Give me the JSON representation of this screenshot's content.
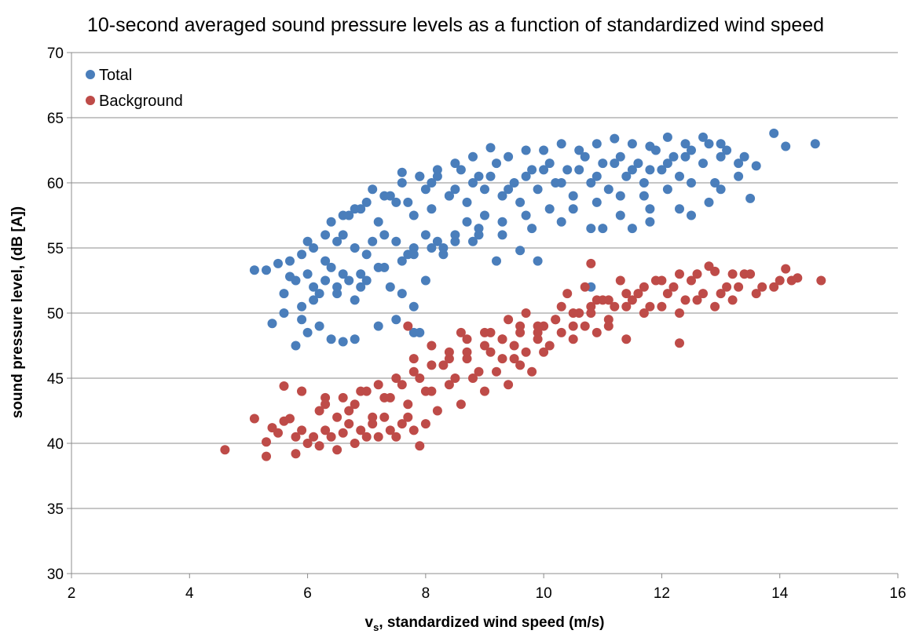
{
  "chart_data": {
    "type": "scatter",
    "title": "10-second averaged sound pressure levels as a function of standardized wind speed",
    "xlabel_main": "v",
    "xlabel_sub": "s",
    "xlabel_rest": ", standardized wind speed (m/s)",
    "ylabel": "sound pressure level, (dB [A])",
    "xlim": [
      2,
      16
    ],
    "ylim": [
      30,
      70
    ],
    "x_ticks": [
      "2",
      "4",
      "6",
      "8",
      "10",
      "12",
      "14",
      "16"
    ],
    "y_ticks": [
      "30",
      "35",
      "40",
      "45",
      "50",
      "55",
      "60",
      "65",
      "70"
    ],
    "grid": "horizontal",
    "legend_placement": "top-left",
    "series": [
      {
        "name": "Total",
        "color": "#4a7ebb",
        "x": [
          5.1,
          5.3,
          5.5,
          5.6,
          5.7,
          5.8,
          5.8,
          5.9,
          5.9,
          6.0,
          6.1,
          6.2,
          6.3,
          6.4,
          6.5,
          6.6,
          6.7,
          6.8,
          6.9,
          7.0,
          7.2,
          7.4,
          7.6,
          7.8,
          7.9,
          8.0,
          5.7,
          5.9,
          6.1,
          6.3,
          6.5,
          6.6,
          6.8,
          7.0,
          7.1,
          7.3,
          7.5,
          7.6,
          7.8,
          8.0,
          8.2,
          8.3,
          8.5,
          8.7,
          8.9,
          9.0,
          6.0,
          6.3,
          6.6,
          6.9,
          7.2,
          7.5,
          7.8,
          8.1,
          8.4,
          8.7,
          9.0,
          9.3,
          9.6,
          9.9,
          10.2,
          10.5,
          10.8,
          11.1,
          11.4,
          11.7,
          12.0,
          12.3,
          6.4,
          6.8,
          7.1,
          7.4,
          7.7,
          8.0,
          8.2,
          8.5,
          8.8,
          9.1,
          9.4,
          9.7,
          10.0,
          10.3,
          10.6,
          10.9,
          11.2,
          11.5,
          11.8,
          12.1,
          12.4,
          12.7,
          13.0,
          13.3,
          13.6,
          6.7,
          7.0,
          7.3,
          7.6,
          7.9,
          8.1,
          8.4,
          8.6,
          8.9,
          9.2,
          9.5,
          9.8,
          10.1,
          10.4,
          10.7,
          11.0,
          11.3,
          11.6,
          11.9,
          12.2,
          12.5,
          12.8,
          13.1,
          13.4,
          7.6,
          7.9,
          8.2,
          8.5,
          8.8,
          9.1,
          9.4,
          9.7,
          10.0,
          10.3,
          10.6,
          10.9,
          11.2,
          11.5,
          11.8,
          12.1,
          12.4,
          12.7,
          13.0,
          13.9,
          14.1,
          14.6,
          7.8,
          8.3,
          8.8,
          9.3,
          9.8,
          10.3,
          10.8,
          11.3,
          11.8,
          12.3,
          12.8,
          6.0,
          6.2,
          6.4,
          6.6,
          6.8,
          7.2,
          7.5,
          7.8,
          9.2,
          9.6,
          9.9,
          10.8,
          11.0,
          11.5,
          11.8,
          12.5,
          13.0,
          13.5,
          5.4,
          5.6,
          6.1,
          6.5,
          6.9,
          7.3,
          7.7,
          8.1,
          8.5,
          8.9,
          9.3,
          9.7,
          10.1,
          10.5,
          10.9,
          11.3,
          11.7,
          12.1,
          12.5,
          12.9,
          13.3
        ],
        "y": [
          53.3,
          53.3,
          53.8,
          51.5,
          52.8,
          52.5,
          47.5,
          49.5,
          50.5,
          53.0,
          52.0,
          51.5,
          52.5,
          53.5,
          52.0,
          53.0,
          52.5,
          51.0,
          53.0,
          52.5,
          53.5,
          52.0,
          51.5,
          50.5,
          48.5,
          52.5,
          54.0,
          54.5,
          55.0,
          54.0,
          55.5,
          56.0,
          55.0,
          54.5,
          55.5,
          56.0,
          55.5,
          54.0,
          55.0,
          56.0,
          55.5,
          54.5,
          56.0,
          57.0,
          56.5,
          57.5,
          55.5,
          56.0,
          57.5,
          58.0,
          57.0,
          58.5,
          57.5,
          58.0,
          59.0,
          58.5,
          59.5,
          59.0,
          58.5,
          59.5,
          60.0,
          59.0,
          60.0,
          59.5,
          60.5,
          60.0,
          61.0,
          60.5,
          57.0,
          58.0,
          59.5,
          59.0,
          58.5,
          59.5,
          60.5,
          59.5,
          60.0,
          60.5,
          59.5,
          60.5,
          61.0,
          60.0,
          61.0,
          60.5,
          61.5,
          61.0,
          61.0,
          61.5,
          62.0,
          61.5,
          62.0,
          61.5,
          61.3,
          57.5,
          58.5,
          59.0,
          60.0,
          60.5,
          60.0,
          59.0,
          61.0,
          60.5,
          61.5,
          60.0,
          61.0,
          61.5,
          61.0,
          62.0,
          61.5,
          62.0,
          61.5,
          62.5,
          62.0,
          62.5,
          63.0,
          62.5,
          62.0,
          60.8,
          60.5,
          61.0,
          61.5,
          62.0,
          62.7,
          62.0,
          62.5,
          62.5,
          63.0,
          62.5,
          63.0,
          63.4,
          63.0,
          62.8,
          63.5,
          63.0,
          63.5,
          63.0,
          63.8,
          62.8,
          63.0,
          54.5,
          55.0,
          55.5,
          56.0,
          56.5,
          57.0,
          56.5,
          57.5,
          57.0,
          58.0,
          58.5,
          48.5,
          49.0,
          48.0,
          47.8,
          48.0,
          49.0,
          49.5,
          48.5,
          54.0,
          54.8,
          54.0,
          52.0,
          56.5,
          56.5,
          58.0,
          57.5,
          59.5,
          58.8,
          49.2,
          50.0,
          51.0,
          51.5,
          52.0,
          53.5,
          54.5,
          55.0,
          55.5,
          56.0,
          57.0,
          57.5,
          58.0,
          58.0,
          58.5,
          59.0,
          59.0,
          59.5,
          60.0,
          60.0,
          60.5
        ]
      },
      {
        "name": "Background",
        "color": "#be4b48",
        "x": [
          4.6,
          5.1,
          5.3,
          5.3,
          5.4,
          5.5,
          5.6,
          5.7,
          5.8,
          5.8,
          5.9,
          6.0,
          6.1,
          6.2,
          6.3,
          6.4,
          6.5,
          6.6,
          6.7,
          6.8,
          6.9,
          7.0,
          7.1,
          7.2,
          7.3,
          7.4,
          7.5,
          7.6,
          7.7,
          7.8,
          7.9,
          8.0,
          5.9,
          6.2,
          6.5,
          6.8,
          7.1,
          7.4,
          7.7,
          8.0,
          8.2,
          8.4,
          8.6,
          8.8,
          9.0,
          9.2,
          9.4,
          9.6,
          9.8,
          10.0,
          6.3,
          6.7,
          7.0,
          7.3,
          7.6,
          7.9,
          8.1,
          8.3,
          8.5,
          8.7,
          8.9,
          9.1,
          9.3,
          9.5,
          9.7,
          9.9,
          10.1,
          10.3,
          10.5,
          10.7,
          10.9,
          11.1,
          7.8,
          8.1,
          8.4,
          8.7,
          9.0,
          9.3,
          9.6,
          9.9,
          10.2,
          10.5,
          10.8,
          11.1,
          11.4,
          11.7,
          12.0,
          12.3,
          12.6,
          12.9,
          13.2,
          9.1,
          9.4,
          9.7,
          10.0,
          10.3,
          10.6,
          10.9,
          11.2,
          11.5,
          11.8,
          12.1,
          12.4,
          12.7,
          13.0,
          13.3,
          13.6,
          13.9,
          14.2,
          10.4,
          10.7,
          11.0,
          11.3,
          11.6,
          11.9,
          12.2,
          12.5,
          12.8,
          13.1,
          13.4,
          13.7,
          14.0,
          14.3,
          14.7,
          5.6,
          5.9,
          6.3,
          6.6,
          6.9,
          7.2,
          7.5,
          7.8,
          8.1,
          8.4,
          8.7,
          9.0,
          9.3,
          9.6,
          9.9,
          10.2,
          10.5,
          10.8,
          11.1,
          11.4,
          11.7,
          12.0,
          12.3,
          12.6,
          12.9,
          13.2,
          13.5,
          14.1,
          7.7,
          8.6,
          9.5,
          10.8,
          11.4,
          12.3
        ],
        "y": [
          39.5,
          41.9,
          39.0,
          40.1,
          41.2,
          40.8,
          41.7,
          41.9,
          39.2,
          40.5,
          41.0,
          40.0,
          40.5,
          39.8,
          41.0,
          40.5,
          39.5,
          40.8,
          41.5,
          40.0,
          41.0,
          40.5,
          41.5,
          40.5,
          42.0,
          41.0,
          40.5,
          41.5,
          42.0,
          41.0,
          39.8,
          41.5,
          44.0,
          42.5,
          42.0,
          43.0,
          42.0,
          43.5,
          43.0,
          44.0,
          42.5,
          44.5,
          43.0,
          45.0,
          44.0,
          45.5,
          44.5,
          46.0,
          45.5,
          47.0,
          43.5,
          42.5,
          44.0,
          43.5,
          44.5,
          45.0,
          44.0,
          46.0,
          45.0,
          46.5,
          45.5,
          47.0,
          46.5,
          47.5,
          47.0,
          48.0,
          47.5,
          48.5,
          48.0,
          49.0,
          48.5,
          49.0,
          46.5,
          47.5,
          47.0,
          48.0,
          48.5,
          48.0,
          49.0,
          48.5,
          49.5,
          49.0,
          50.0,
          49.5,
          50.5,
          50.0,
          50.5,
          50.0,
          51.0,
          50.5,
          51.0,
          48.5,
          49.5,
          50.0,
          49.0,
          50.5,
          50.0,
          51.0,
          50.5,
          51.0,
          50.5,
          51.5,
          51.0,
          51.5,
          51.5,
          52.0,
          51.5,
          52.0,
          52.5,
          51.5,
          52.0,
          51.0,
          52.5,
          51.5,
          52.5,
          52.0,
          52.5,
          53.6,
          52.0,
          53.0,
          52.0,
          52.5,
          52.7,
          52.5,
          44.4,
          44.0,
          43.0,
          43.5,
          44.0,
          44.5,
          45.0,
          45.5,
          46.0,
          46.5,
          47.0,
          47.5,
          48.0,
          48.5,
          49.0,
          49.5,
          50.0,
          50.5,
          51.0,
          51.5,
          52.0,
          52.5,
          53.0,
          53.0,
          53.2,
          53.0,
          53.0,
          53.4,
          49.0,
          48.5,
          46.5,
          53.8,
          48.0,
          47.7
        ]
      }
    ]
  }
}
